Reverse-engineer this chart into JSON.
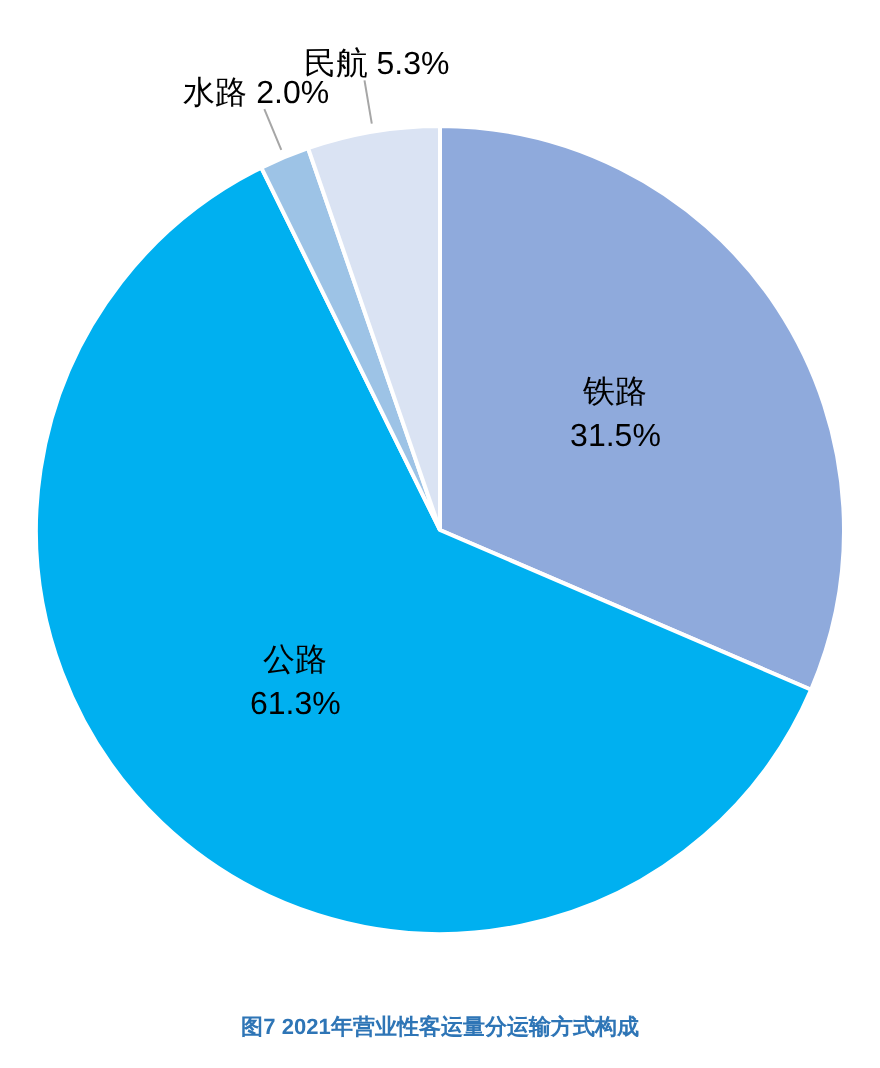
{
  "chart_data": {
    "type": "pie",
    "title": "图7  2021年营业性客运量分运输方式构成",
    "categories": [
      "铁路",
      "公路",
      "水路",
      "民航"
    ],
    "values": [
      31.5,
      61.3,
      2.0,
      5.3
    ],
    "value_labels": [
      "31.5%",
      "61.3%",
      "2.0%",
      "5.3%"
    ],
    "colors": [
      "#8faadc",
      "#00b0f0",
      "#9dc3e6",
      "#dae3f3"
    ]
  }
}
